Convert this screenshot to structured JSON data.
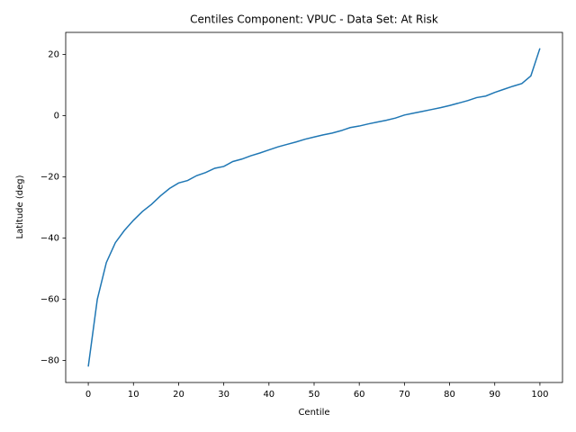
{
  "chart_data": {
    "type": "line",
    "title": "Centiles Component: VPUC - Data Set: At Risk",
    "xlabel": "Centile",
    "ylabel": "Latitude (deg)",
    "x": [
      0,
      2,
      4,
      6,
      8,
      10,
      12,
      14,
      16,
      18,
      20,
      22,
      24,
      26,
      28,
      30,
      32,
      34,
      36,
      38,
      40,
      42,
      44,
      46,
      48,
      50,
      52,
      54,
      56,
      58,
      60,
      62,
      64,
      66,
      68,
      70,
      72,
      74,
      76,
      78,
      80,
      82,
      84,
      86,
      88,
      90,
      92,
      94,
      96,
      98,
      100
    ],
    "series": [
      {
        "name": "At Risk",
        "color": "#1f77b4",
        "values": [
          -82,
          -60,
          -48,
          -41.5,
          -37.5,
          -34.2,
          -31.3,
          -29,
          -26.2,
          -23.8,
          -22,
          -21.2,
          -19.6,
          -18.6,
          -17.2,
          -16.6,
          -15,
          -14.2,
          -13.1,
          -12.2,
          -11.2,
          -10.2,
          -9.4,
          -8.6,
          -7.7,
          -7,
          -6.3,
          -5.7,
          -4.9,
          -3.9,
          -3.4,
          -2.7,
          -2.1,
          -1.5,
          -0.8,
          0.2,
          0.8,
          1.4,
          2,
          2.6,
          3.3,
          4.1,
          4.9,
          5.9,
          6.4,
          7.6,
          8.6,
          9.6,
          10.5,
          13,
          22
        ]
      }
    ],
    "xlim": [
      -5,
      105
    ],
    "xticks": [
      0,
      10,
      20,
      30,
      40,
      50,
      60,
      70,
      80,
      90,
      100
    ],
    "ylim": [
      -87.2,
      27.2
    ],
    "yticks": [
      {
        "value": -80,
        "label": "−80"
      },
      {
        "value": -60,
        "label": "−60"
      },
      {
        "value": -40,
        "label": "−40"
      },
      {
        "value": -20,
        "label": "−20"
      },
      0,
      20
    ]
  }
}
